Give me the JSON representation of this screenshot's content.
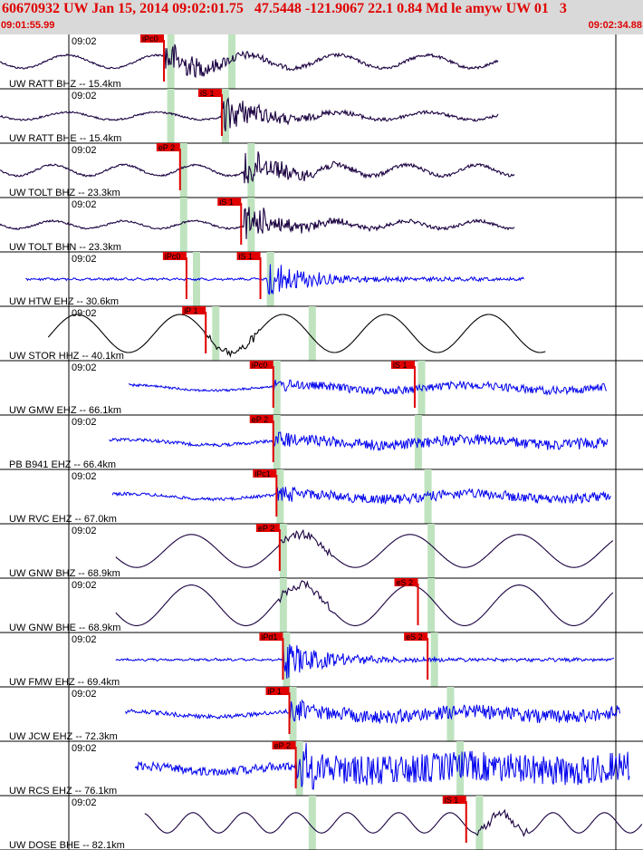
{
  "header": {
    "title": "60670932 UW Jan 15, 2014 09:02:01.75   47.5448 -121.9067 22.1 0.84 Md le amyw UW 01   3",
    "start_time": "09:01:55.99",
    "end_time": "09:02:34.88"
  },
  "colors": {
    "header_bg": "#d9d9d9",
    "header_text": "#e00000",
    "pick_marker": "#e00000",
    "window_band": "#bfe3bf",
    "trace_blue": "#0000ee",
    "trace_dark": "#1a0040",
    "trace_black": "#000000"
  },
  "traces": [
    {
      "label": "UW RATT BHZ -- 15.4km",
      "minute": "09:02",
      "color": "dark",
      "style": "onset",
      "start": 0.0,
      "end": 0.775,
      "amp": 0.6,
      "period": 0.14,
      "onset": 0.255,
      "picks": [
        {
          "label": "iPc0",
          "t": 0.255
        }
      ],
      "green": [
        0.26,
        0.355
      ]
    },
    {
      "label": "UW RATT BHE -- 15.4km",
      "minute": "09:02",
      "color": "dark",
      "style": "onset",
      "start": 0.0,
      "end": 0.775,
      "amp": 0.35,
      "period": 0.14,
      "onset": 0.345,
      "picks": [
        {
          "label": "iS 1",
          "t": 0.345
        }
      ],
      "green": [
        0.26,
        0.345
      ]
    },
    {
      "label": "UW TOLT BHZ -- 23.3km",
      "minute": "09:02",
      "color": "dark",
      "style": "onset",
      "start": 0.0,
      "end": 0.8,
      "amp": 0.5,
      "period": 0.11,
      "onset": 0.38,
      "picks": [
        {
          "label": "eP 2",
          "t": 0.28
        }
      ],
      "green": [
        0.28,
        0.385
      ]
    },
    {
      "label": "UW TOLT BHN -- 23.3km",
      "minute": "09:02",
      "color": "dark",
      "style": "onset",
      "start": 0.0,
      "end": 0.8,
      "amp": 0.35,
      "period": 0.11,
      "onset": 0.38,
      "picks": [
        {
          "label": "iS 1",
          "t": 0.375
        }
      ],
      "green": [
        0.28,
        0.385
      ]
    },
    {
      "label": "UW HTW EHZ -- 30.6km",
      "minute": "09:02",
      "color": "blue",
      "style": "onset",
      "start": 0.04,
      "end": 0.815,
      "amp": 0.05,
      "period": 0.02,
      "onset": 0.415,
      "picks": [
        {
          "label": "iPc0",
          "t": 0.29
        },
        {
          "label": "iS 1",
          "t": 0.405
        }
      ],
      "green": [
        0.3,
        0.415
      ]
    },
    {
      "label": "UW STOR HHZ -- 40.1km",
      "minute": "09:02",
      "color": "black",
      "style": "wave",
      "start": 0.075,
      "end": 0.85,
      "amp": 0.75,
      "period": 0.16,
      "onset": 0.32,
      "picks": [
        {
          "label": "iP 1",
          "t": 0.32
        }
      ],
      "green": [
        0.33,
        0.48
      ]
    },
    {
      "label": "UW GMW EHZ -- 66.1km",
      "minute": "09:02",
      "color": "blue",
      "style": "noisy",
      "start": 0.2,
      "end": 0.945,
      "amp": 0.15,
      "period": 0.02,
      "onset": 0.425,
      "picks": [
        {
          "label": "iPc0",
          "t": 0.425
        },
        {
          "label": "iS 1",
          "t": 0.645
        }
      ],
      "green": [
        0.425,
        0.65
      ]
    },
    {
      "label": "PB B941 EHZ -- 66.4km",
      "minute": "09:02",
      "color": "blue",
      "style": "noisy",
      "start": 0.17,
      "end": 0.945,
      "amp": 0.2,
      "period": 0.02,
      "onset": 0.425,
      "picks": [
        {
          "label": "eP 2",
          "t": 0.425
        }
      ],
      "green": [
        0.425,
        0.645
      ]
    },
    {
      "label": "UW RVC EHZ -- 67.0km",
      "minute": "09:02",
      "color": "blue",
      "style": "noisy",
      "start": 0.175,
      "end": 0.95,
      "amp": 0.18,
      "period": 0.02,
      "onset": 0.43,
      "picks": [
        {
          "label": "iPc1",
          "t": 0.43
        }
      ],
      "green": [
        0.43,
        0.66
      ]
    },
    {
      "label": "UW GNW BHZ -- 68.9km",
      "minute": "09:02",
      "color": "dark",
      "style": "wave",
      "start": 0.18,
      "end": 0.955,
      "amp": 0.65,
      "period": 0.17,
      "onset": 0.435,
      "picks": [
        {
          "label": "eP 2",
          "t": 0.435
        }
      ],
      "green": [
        0.435,
        0.665
      ]
    },
    {
      "label": "UW GNW BHE -- 68.9km",
      "minute": "09:02",
      "color": "dark",
      "style": "wave",
      "start": 0.18,
      "end": 0.955,
      "amp": 0.8,
      "period": 0.17,
      "onset": 0.435,
      "picks": [
        {
          "label": "eS 2",
          "t": 0.65
        }
      ],
      "green": [
        0.435,
        0.665
      ]
    },
    {
      "label": "UW FMW EHZ -- 69.4km",
      "minute": "09:02",
      "color": "blue",
      "style": "onset",
      "start": 0.18,
      "end": 0.955,
      "amp": 0.05,
      "period": 0.02,
      "onset": 0.44,
      "picks": [
        {
          "label": "iPd1",
          "t": 0.44
        },
        {
          "label": "eS 2",
          "t": 0.665
        }
      ],
      "green": [
        0.44,
        0.67
      ]
    },
    {
      "label": "UW JCW EHZ -- 72.3km",
      "minute": "09:02",
      "color": "blue",
      "style": "noisy",
      "start": 0.195,
      "end": 0.965,
      "amp": 0.25,
      "period": 0.02,
      "onset": 0.45,
      "picks": [
        {
          "label": "iP 1",
          "t": 0.45
        }
      ],
      "green": [
        0.45,
        0.695
      ]
    },
    {
      "label": "UW RCS EHZ -- 76.1km",
      "minute": "09:02",
      "color": "blue",
      "style": "noisy",
      "start": 0.21,
      "end": 0.98,
      "amp": 0.55,
      "period": 0.02,
      "onset": 0.46,
      "picks": [
        {
          "label": "eP 2",
          "t": 0.46
        }
      ],
      "green": [
        0.46,
        0.71
      ]
    },
    {
      "label": "UW DOSE BHE -- 82.1km",
      "minute": "09:02",
      "color": "dark",
      "style": "wave",
      "start": 0.225,
      "end": 1.0,
      "amp": 0.4,
      "period": 0.08,
      "onset": 0.74,
      "picks": [
        {
          "label": "iS 1",
          "t": 0.725
        }
      ],
      "green": [
        0.48,
        0.74
      ]
    }
  ]
}
